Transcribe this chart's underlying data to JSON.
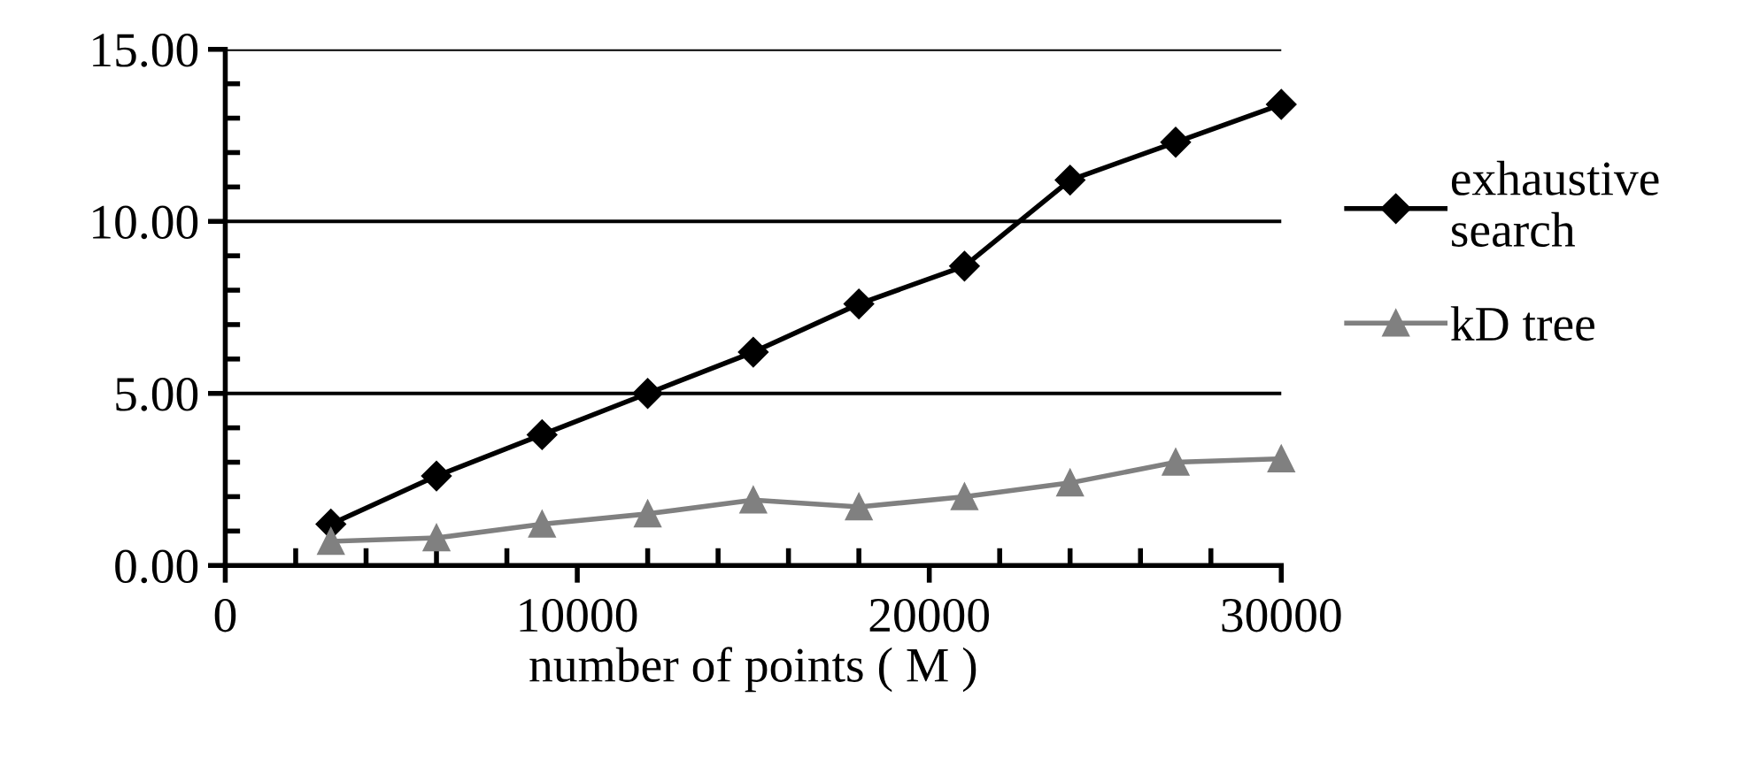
{
  "chart_data": {
    "type": "line",
    "xlabel": "number of points ( M )",
    "x": [
      3000,
      6000,
      9000,
      12000,
      15000,
      18000,
      21000,
      24000,
      27000,
      30000
    ],
    "series": [
      {
        "name": "exhaustive\nsearch",
        "color": "#000000",
        "marker": "diamond",
        "values": [
          1.2,
          2.6,
          3.8,
          5.0,
          6.2,
          7.6,
          8.7,
          11.2,
          12.3,
          13.4
        ]
      },
      {
        "name": "kD tree",
        "color": "#808080",
        "marker": "triangle",
        "values": [
          0.7,
          0.8,
          1.2,
          1.5,
          1.9,
          1.7,
          2.0,
          2.4,
          3.0,
          3.1
        ]
      }
    ],
    "xlim": [
      0,
      30000
    ],
    "ylim": [
      0,
      15
    ],
    "xticks": [
      0,
      {
        "value": 2000,
        "label": null
      },
      {
        "value": 4000,
        "label": null
      },
      {
        "value": 6000,
        "label": null
      },
      {
        "value": 8000,
        "label": null
      },
      10000,
      {
        "value": 12000,
        "label": null
      },
      {
        "value": 14000,
        "label": null
      },
      {
        "value": 16000,
        "label": null
      },
      {
        "value": 18000,
        "label": null
      },
      20000,
      {
        "value": 22000,
        "label": null
      },
      {
        "value": 24000,
        "label": null
      },
      {
        "value": 26000,
        "label": null
      },
      {
        "value": 28000,
        "label": null
      },
      30000
    ],
    "yticks": [
      {
        "value": 0,
        "label": "0.00"
      },
      {
        "value": 1,
        "label": null
      },
      {
        "value": 2,
        "label": null
      },
      {
        "value": 3,
        "label": null
      },
      {
        "value": 4,
        "label": null
      },
      {
        "value": 5,
        "label": "5.00"
      },
      {
        "value": 6,
        "label": null
      },
      {
        "value": 7,
        "label": null
      },
      {
        "value": 8,
        "label": null
      },
      {
        "value": 9,
        "label": null
      },
      {
        "value": 10,
        "label": "10.00"
      },
      {
        "value": 11,
        "label": null
      },
      {
        "value": 12,
        "label": null
      },
      {
        "value": 13,
        "label": null
      },
      {
        "value": 14,
        "label": null
      },
      {
        "value": 15,
        "label": "15.00"
      }
    ],
    "grid": "y",
    "legend": "right"
  }
}
